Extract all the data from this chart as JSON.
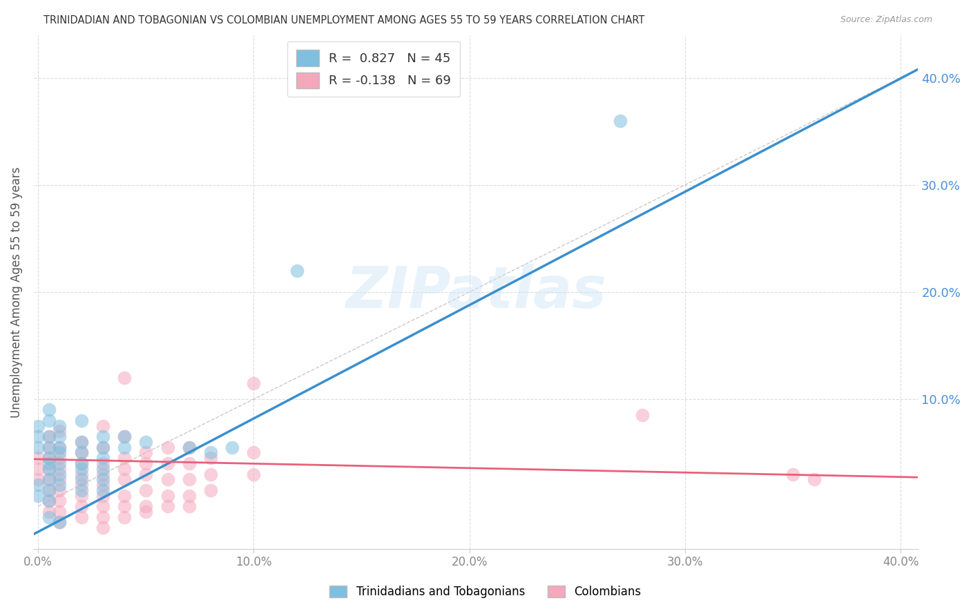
{
  "title": "TRINIDADIAN AND TOBAGONIAN VS COLOMBIAN UNEMPLOYMENT AMONG AGES 55 TO 59 YEARS CORRELATION CHART",
  "source": "Source: ZipAtlas.com",
  "ylabel": "Unemployment Among Ages 55 to 59 years",
  "xlim": [
    -0.002,
    0.408
  ],
  "ylim": [
    -0.04,
    0.44
  ],
  "xticks": [
    0.0,
    0.1,
    0.2,
    0.3,
    0.4
  ],
  "yticks": [
    0.1,
    0.2,
    0.3,
    0.4
  ],
  "xticklabels": [
    "0.0%",
    "10.0%",
    "20.0%",
    "30.0%",
    "40.0%"
  ],
  "yticklabels": [
    "10.0%",
    "20.0%",
    "30.0%",
    "40.0%"
  ],
  "blue_scatter_color": "#7fbfdf",
  "pink_scatter_color": "#f4a8bc",
  "blue_line_color": "#3a8fce",
  "pink_line_color": "#e8607a",
  "ref_line_color": "#bbbbbb",
  "R_blue": 0.827,
  "N_blue": 45,
  "R_pink": -0.138,
  "N_pink": 69,
  "legend_label_blue": "Trinidadians and Tobagonians",
  "legend_label_pink": "Colombians",
  "background_color": "#ffffff",
  "grid_color": "#cccccc",
  "watermark": "ZIPatlas",
  "title_color": "#333333",
  "right_ytick_color": "#4a90d9",
  "bottom_xtick_color": "#888888",
  "ylabel_color": "#555555",
  "blue_scatter": [
    [
      0.0,
      0.055
    ],
    [
      0.0,
      0.065
    ],
    [
      0.0,
      0.075
    ],
    [
      0.0,
      0.02
    ],
    [
      0.005,
      0.09
    ],
    [
      0.005,
      0.08
    ],
    [
      0.005,
      0.065
    ],
    [
      0.005,
      0.055
    ],
    [
      0.005,
      0.045
    ],
    [
      0.005,
      0.04
    ],
    [
      0.005,
      0.035
    ],
    [
      0.005,
      0.025
    ],
    [
      0.005,
      0.015
    ],
    [
      0.005,
      -0.01
    ],
    [
      0.01,
      0.075
    ],
    [
      0.01,
      0.065
    ],
    [
      0.01,
      0.055
    ],
    [
      0.01,
      0.05
    ],
    [
      0.01,
      0.04
    ],
    [
      0.01,
      0.03
    ],
    [
      0.01,
      0.02
    ],
    [
      0.01,
      -0.015
    ],
    [
      0.02,
      0.08
    ],
    [
      0.02,
      0.06
    ],
    [
      0.02,
      0.05
    ],
    [
      0.02,
      0.04
    ],
    [
      0.02,
      0.035
    ],
    [
      0.02,
      0.025
    ],
    [
      0.02,
      0.015
    ],
    [
      0.03,
      0.065
    ],
    [
      0.03,
      0.055
    ],
    [
      0.03,
      0.045
    ],
    [
      0.03,
      0.035
    ],
    [
      0.03,
      0.025
    ],
    [
      0.03,
      0.015
    ],
    [
      0.04,
      0.065
    ],
    [
      0.04,
      0.055
    ],
    [
      0.05,
      0.06
    ],
    [
      0.07,
      0.055
    ],
    [
      0.08,
      0.05
    ],
    [
      0.09,
      0.055
    ],
    [
      0.12,
      0.22
    ],
    [
      0.27,
      0.36
    ],
    [
      0.0,
      0.01
    ],
    [
      0.005,
      0.005
    ]
  ],
  "pink_scatter": [
    [
      0.0,
      0.045
    ],
    [
      0.0,
      0.035
    ],
    [
      0.0,
      0.025
    ],
    [
      0.005,
      0.065
    ],
    [
      0.005,
      0.055
    ],
    [
      0.005,
      0.045
    ],
    [
      0.005,
      0.035
    ],
    [
      0.005,
      0.025
    ],
    [
      0.005,
      0.015
    ],
    [
      0.005,
      0.005
    ],
    [
      0.005,
      -0.005
    ],
    [
      0.01,
      0.07
    ],
    [
      0.01,
      0.055
    ],
    [
      0.01,
      0.045
    ],
    [
      0.01,
      0.035
    ],
    [
      0.01,
      0.025
    ],
    [
      0.01,
      0.015
    ],
    [
      0.01,
      0.005
    ],
    [
      0.01,
      -0.005
    ],
    [
      0.01,
      -0.015
    ],
    [
      0.02,
      0.06
    ],
    [
      0.02,
      0.05
    ],
    [
      0.02,
      0.04
    ],
    [
      0.02,
      0.03
    ],
    [
      0.02,
      0.02
    ],
    [
      0.02,
      0.01
    ],
    [
      0.02,
      0.0
    ],
    [
      0.02,
      -0.01
    ],
    [
      0.03,
      0.075
    ],
    [
      0.03,
      0.055
    ],
    [
      0.03,
      0.04
    ],
    [
      0.03,
      0.03
    ],
    [
      0.03,
      0.02
    ],
    [
      0.03,
      0.01
    ],
    [
      0.03,
      0.0
    ],
    [
      0.03,
      -0.01
    ],
    [
      0.03,
      -0.02
    ],
    [
      0.04,
      0.12
    ],
    [
      0.04,
      0.065
    ],
    [
      0.04,
      0.045
    ],
    [
      0.04,
      0.035
    ],
    [
      0.04,
      0.025
    ],
    [
      0.04,
      0.01
    ],
    [
      0.04,
      0.0
    ],
    [
      0.04,
      -0.01
    ],
    [
      0.05,
      0.05
    ],
    [
      0.05,
      0.04
    ],
    [
      0.05,
      0.03
    ],
    [
      0.05,
      0.015
    ],
    [
      0.05,
      0.0
    ],
    [
      0.05,
      -0.005
    ],
    [
      0.06,
      0.055
    ],
    [
      0.06,
      0.04
    ],
    [
      0.06,
      0.025
    ],
    [
      0.06,
      0.01
    ],
    [
      0.06,
      0.0
    ],
    [
      0.07,
      0.055
    ],
    [
      0.07,
      0.04
    ],
    [
      0.07,
      0.025
    ],
    [
      0.07,
      0.01
    ],
    [
      0.07,
      0.0
    ],
    [
      0.08,
      0.045
    ],
    [
      0.08,
      0.03
    ],
    [
      0.08,
      0.015
    ],
    [
      0.1,
      0.115
    ],
    [
      0.1,
      0.05
    ],
    [
      0.1,
      0.03
    ],
    [
      0.28,
      0.085
    ],
    [
      0.35,
      0.03
    ],
    [
      0.36,
      0.025
    ]
  ],
  "blue_line_x": [
    -0.002,
    0.408
  ],
  "blue_line_y": [
    -0.026,
    0.408
  ],
  "pink_line_x": [
    -0.002,
    0.408
  ],
  "pink_line_y": [
    0.044,
    0.027
  ],
  "ref_line_x": [
    0.0,
    0.44
  ],
  "ref_line_y": [
    0.0,
    0.44
  ]
}
